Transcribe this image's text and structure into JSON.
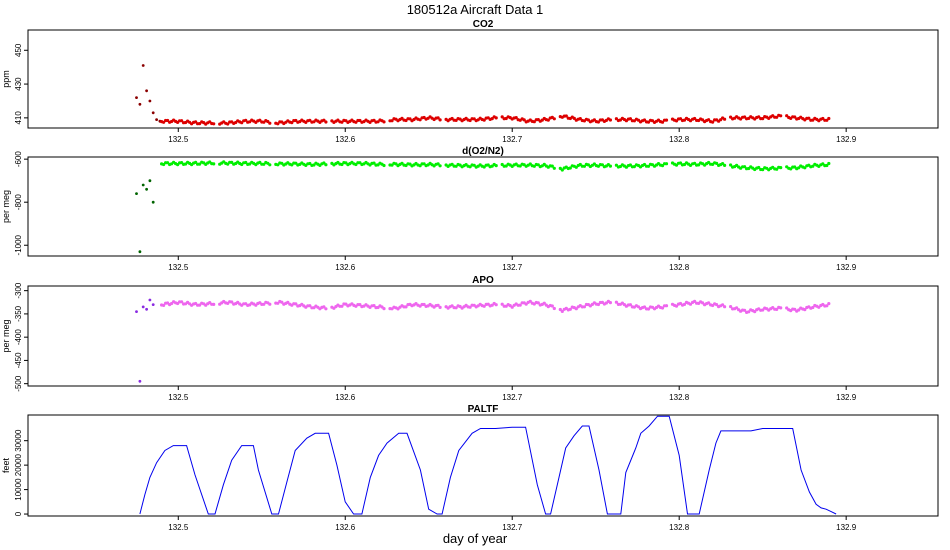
{
  "figure": {
    "main_title": "180512a   Aircraft Data 1",
    "xlabel": "day of year"
  },
  "chart_data": [
    {
      "type": "scatter",
      "title": "CO2",
      "ylabel": "ppm",
      "xlim": [
        132.41,
        132.955
      ],
      "ylim": [
        404,
        462
      ],
      "xticks": [
        132.5,
        132.6,
        132.7,
        132.8,
        132.9
      ],
      "yticks": [
        410,
        430,
        450
      ],
      "color": "#dd0000",
      "alt_color": "#8b0000",
      "series": [
        {
          "x": [
            132.475,
            132.477,
            132.479,
            132.481,
            132.483,
            132.485,
            132.487,
            132.489
          ],
          "values": [
            422,
            418,
            441,
            426,
            420,
            413,
            409,
            408
          ]
        },
        {
          "x": [
            132.49,
            132.5,
            132.51,
            132.52,
            132.53,
            132.54,
            132.55,
            132.56,
            132.57,
            132.58,
            132.59,
            132.6,
            132.61,
            132.62,
            132.63,
            132.64,
            132.65,
            132.66,
            132.67,
            132.68,
            132.69,
            132.7,
            132.71,
            132.72,
            132.73,
            132.74,
            132.75,
            132.76,
            132.77,
            132.78,
            132.79,
            132.8,
            132.81,
            132.82,
            132.83,
            132.84,
            132.85,
            132.86,
            132.87,
            132.88,
            132.89
          ],
          "values": [
            408,
            408,
            407,
            407,
            407,
            408,
            408,
            407,
            408,
            408,
            408,
            408,
            408,
            408,
            409,
            409,
            410,
            409,
            409,
            409,
            410,
            410,
            408,
            409,
            411,
            409,
            408,
            409,
            409,
            408,
            408,
            409,
            409,
            408,
            410,
            410,
            410,
            411,
            410,
            409,
            409
          ]
        }
      ]
    },
    {
      "type": "scatter",
      "title": "d(O2/N2)",
      "ylabel": "per meg",
      "xlim": [
        132.41,
        132.955
      ],
      "ylim": [
        -1050,
        -590
      ],
      "xticks": [
        132.5,
        132.6,
        132.7,
        132.8,
        132.9
      ],
      "yticks": [
        -1000,
        -800,
        -600
      ],
      "color": "#00ee00",
      "alt_color": "#006400",
      "series": [
        {
          "x": [
            132.475,
            132.477,
            132.479,
            132.481,
            132.483,
            132.485
          ],
          "values": [
            -760,
            -1030,
            -720,
            -740,
            -700,
            -800
          ]
        },
        {
          "x": [
            132.49,
            132.5,
            132.51,
            132.52,
            132.53,
            132.54,
            132.55,
            132.56,
            132.57,
            132.58,
            132.59,
            132.6,
            132.61,
            132.62,
            132.63,
            132.64,
            132.65,
            132.66,
            132.67,
            132.68,
            132.69,
            132.7,
            132.71,
            132.72,
            132.73,
            132.74,
            132.75,
            132.76,
            132.77,
            132.78,
            132.79,
            132.8,
            132.81,
            132.82,
            132.83,
            132.84,
            132.85,
            132.86,
            132.87,
            132.88,
            132.89
          ],
          "values": [
            -620,
            -620,
            -620,
            -618,
            -618,
            -620,
            -620,
            -622,
            -622,
            -625,
            -622,
            -620,
            -620,
            -624,
            -624,
            -626,
            -625,
            -628,
            -630,
            -632,
            -630,
            -628,
            -628,
            -630,
            -645,
            -630,
            -628,
            -632,
            -632,
            -630,
            -625,
            -622,
            -624,
            -620,
            -630,
            -640,
            -645,
            -642,
            -640,
            -630,
            -625
          ]
        }
      ]
    },
    {
      "type": "scatter",
      "title": "APO",
      "ylabel": "per meg",
      "xlim": [
        132.41,
        132.955
      ],
      "ylim": [
        -505,
        -290
      ],
      "xticks": [
        132.5,
        132.6,
        132.7,
        132.8,
        132.9
      ],
      "yticks": [
        -500,
        -450,
        -400,
        -350,
        -300
      ],
      "color": "#ee66ee",
      "alt_color": "#8a2be2",
      "series": [
        {
          "x": [
            132.475,
            132.477,
            132.479,
            132.481,
            132.483,
            132.485
          ],
          "values": [
            -345,
            -495,
            -335,
            -340,
            -320,
            -330
          ]
        },
        {
          "x": [
            132.49,
            132.5,
            132.51,
            132.52,
            132.53,
            132.54,
            132.55,
            132.56,
            132.57,
            132.58,
            132.59,
            132.6,
            132.61,
            132.62,
            132.63,
            132.64,
            132.65,
            132.66,
            132.67,
            132.68,
            132.69,
            132.7,
            132.71,
            132.72,
            132.73,
            132.74,
            132.75,
            132.76,
            132.77,
            132.78,
            132.79,
            132.8,
            132.81,
            132.82,
            132.83,
            132.84,
            132.85,
            132.86,
            132.87,
            132.88,
            132.89
          ],
          "values": [
            -330,
            -325,
            -330,
            -328,
            -325,
            -330,
            -328,
            -325,
            -330,
            -335,
            -338,
            -330,
            -332,
            -335,
            -338,
            -330,
            -332,
            -335,
            -335,
            -332,
            -330,
            -333,
            -325,
            -330,
            -342,
            -335,
            -328,
            -325,
            -332,
            -338,
            -335,
            -330,
            -325,
            -330,
            -335,
            -345,
            -340,
            -338,
            -342,
            -335,
            -330
          ]
        }
      ]
    },
    {
      "type": "line",
      "title": "PALTF",
      "ylabel": "feet",
      "xlim": [
        132.41,
        132.955
      ],
      "ylim": [
        -800,
        40500
      ],
      "xticks": [
        132.5,
        132.6,
        132.7,
        132.8,
        132.9
      ],
      "yticks": [
        0,
        10000,
        20000,
        30000
      ],
      "color": "#0000ee",
      "x": [
        132.477,
        132.48,
        132.483,
        132.487,
        132.492,
        132.497,
        132.505,
        132.51,
        132.518,
        132.522,
        132.527,
        132.532,
        132.538,
        132.545,
        132.548,
        132.556,
        132.56,
        132.565,
        132.57,
        132.577,
        132.582,
        132.59,
        132.595,
        132.6,
        132.605,
        132.61,
        132.615,
        132.62,
        132.625,
        132.632,
        132.637,
        132.645,
        132.65,
        132.655,
        132.658,
        132.663,
        132.668,
        132.676,
        132.681,
        132.69,
        132.7,
        132.708,
        132.715,
        132.72,
        132.723,
        132.728,
        132.732,
        132.737,
        132.742,
        132.746,
        132.752,
        132.757,
        132.765,
        132.768,
        132.774,
        132.777,
        132.782,
        132.787,
        132.794,
        132.8,
        132.805,
        132.812,
        132.818,
        132.822,
        132.825,
        132.833,
        132.838,
        132.843,
        132.85,
        132.855,
        132.862,
        132.868,
        132.873,
        132.878,
        132.882,
        132.885,
        132.888,
        132.891,
        132.894
      ],
      "values": [
        0,
        8000,
        15000,
        21000,
        26000,
        28000,
        28000,
        16000,
        0,
        0,
        12000,
        22000,
        28000,
        28000,
        18000,
        0,
        0,
        13000,
        26000,
        31000,
        33000,
        33000,
        20000,
        5000,
        0,
        0,
        15000,
        24000,
        29000,
        33000,
        33000,
        18000,
        2000,
        0,
        0,
        15000,
        26000,
        33000,
        35000,
        35000,
        35500,
        35500,
        12000,
        0,
        0,
        15000,
        27000,
        32000,
        36000,
        36000,
        18000,
        0,
        0,
        17000,
        27000,
        33000,
        36000,
        40000,
        40000,
        24000,
        0,
        0,
        18000,
        29000,
        34000,
        34000,
        34000,
        34000,
        35000,
        35000,
        35000,
        35000,
        18000,
        9000,
        4000,
        2500,
        2000,
        1000,
        0
      ]
    }
  ]
}
